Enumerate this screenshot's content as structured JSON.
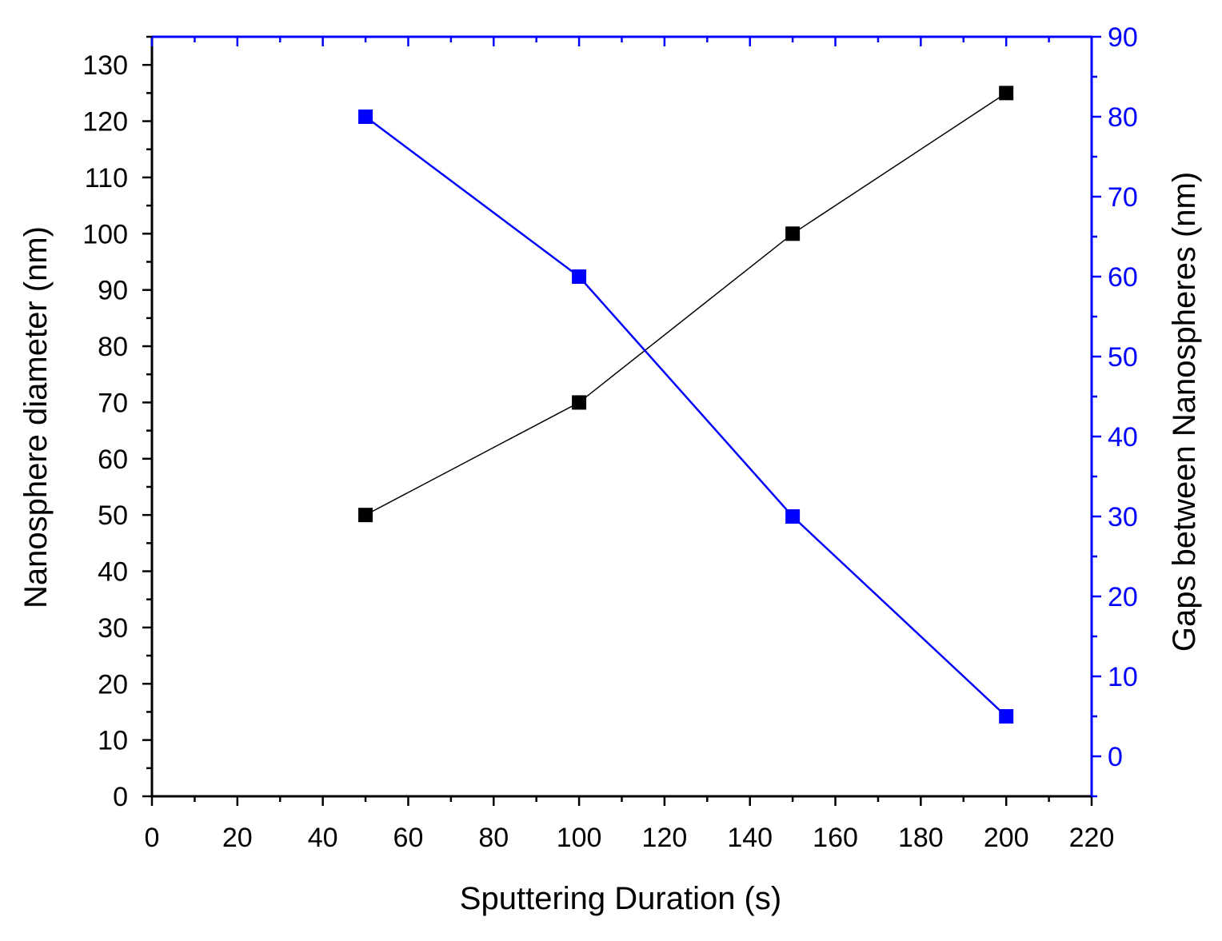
{
  "chart_data": {
    "type": "line",
    "title": "",
    "xlabel": "Sputtering Duration (s)",
    "ylabel": "Nanosphere diameter (nm)",
    "y2label": "Gaps between Nanospheres (nm)",
    "xlim": [
      0,
      220
    ],
    "ylim": [
      0,
      135
    ],
    "y2lim": [
      -5,
      90
    ],
    "x_ticks": [
      0,
      20,
      40,
      60,
      80,
      100,
      120,
      140,
      160,
      180,
      200,
      220
    ],
    "y_ticks": [
      0,
      10,
      20,
      30,
      40,
      50,
      60,
      70,
      80,
      90,
      100,
      110,
      120,
      130
    ],
    "y2_ticks": [
      0,
      10,
      20,
      30,
      40,
      50,
      60,
      70,
      80,
      90
    ],
    "grid": false,
    "legend": "none",
    "series": [
      {
        "axis": "left",
        "color": "#000000",
        "marker": "square",
        "x": [
          50,
          100,
          150,
          200
        ],
        "values": [
          50,
          70,
          100,
          125
        ]
      },
      {
        "axis": "right",
        "color": "#0000ff",
        "marker": "square",
        "x": [
          50,
          100,
          150,
          200
        ],
        "values": [
          80,
          60,
          30,
          5
        ]
      }
    ]
  }
}
